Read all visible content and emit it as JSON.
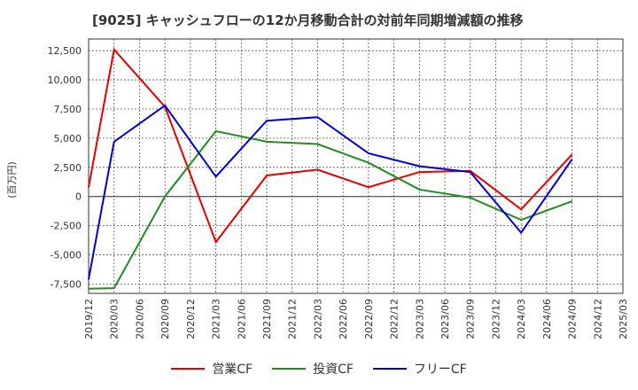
{
  "chart_data": {
    "type": "line",
    "title": "[9025]  キャッシュフローの12か月移動合計の対前年同期増減額の推移",
    "ylabel": "(百万円)",
    "xlabel": "",
    "ylim": [
      -8300,
      13500
    ],
    "yticks": [
      12500,
      10000,
      7500,
      5000,
      2500,
      0,
      -2500,
      -5000,
      -7500
    ],
    "ytick_labels": [
      "12,500",
      "10,000",
      "7,500",
      "5,000",
      "2,500",
      "0",
      "-2,500",
      "-5,000",
      "-7,500"
    ],
    "categories": [
      "2019/12",
      "2020/03",
      "2020/06",
      "2020/09",
      "2020/12",
      "2021/03",
      "2021/06",
      "2021/09",
      "2021/12",
      "2022/03",
      "2022/06",
      "2022/09",
      "2022/12",
      "2023/03",
      "2023/06",
      "2023/09",
      "2023/12",
      "2024/03",
      "2024/06",
      "2024/09",
      "2024/12",
      "2025/03"
    ],
    "grid": true,
    "legend_position": "bottom",
    "series": [
      {
        "name": "営業CF",
        "color": "#e60000",
        "values": [
          800,
          12600,
          null,
          7700,
          null,
          -3900,
          null,
          1800,
          null,
          2300,
          null,
          800,
          null,
          2100,
          null,
          2200,
          null,
          -1100,
          null,
          3600,
          null,
          null
        ]
      },
      {
        "name": "投資CF",
        "color": "#228b22",
        "values": [
          -7900,
          -7850,
          null,
          0,
          null,
          5600,
          null,
          4700,
          null,
          4500,
          null,
          2900,
          null,
          600,
          null,
          -100,
          null,
          -2000,
          null,
          -400,
          null,
          null
        ]
      },
      {
        "name": "フリーCF",
        "color": "#0000dd",
        "values": [
          -7100,
          4700,
          null,
          7800,
          null,
          1700,
          null,
          6500,
          null,
          6800,
          null,
          3700,
          null,
          2600,
          null,
          2100,
          null,
          -3100,
          null,
          3200,
          null,
          null
        ]
      }
    ]
  }
}
